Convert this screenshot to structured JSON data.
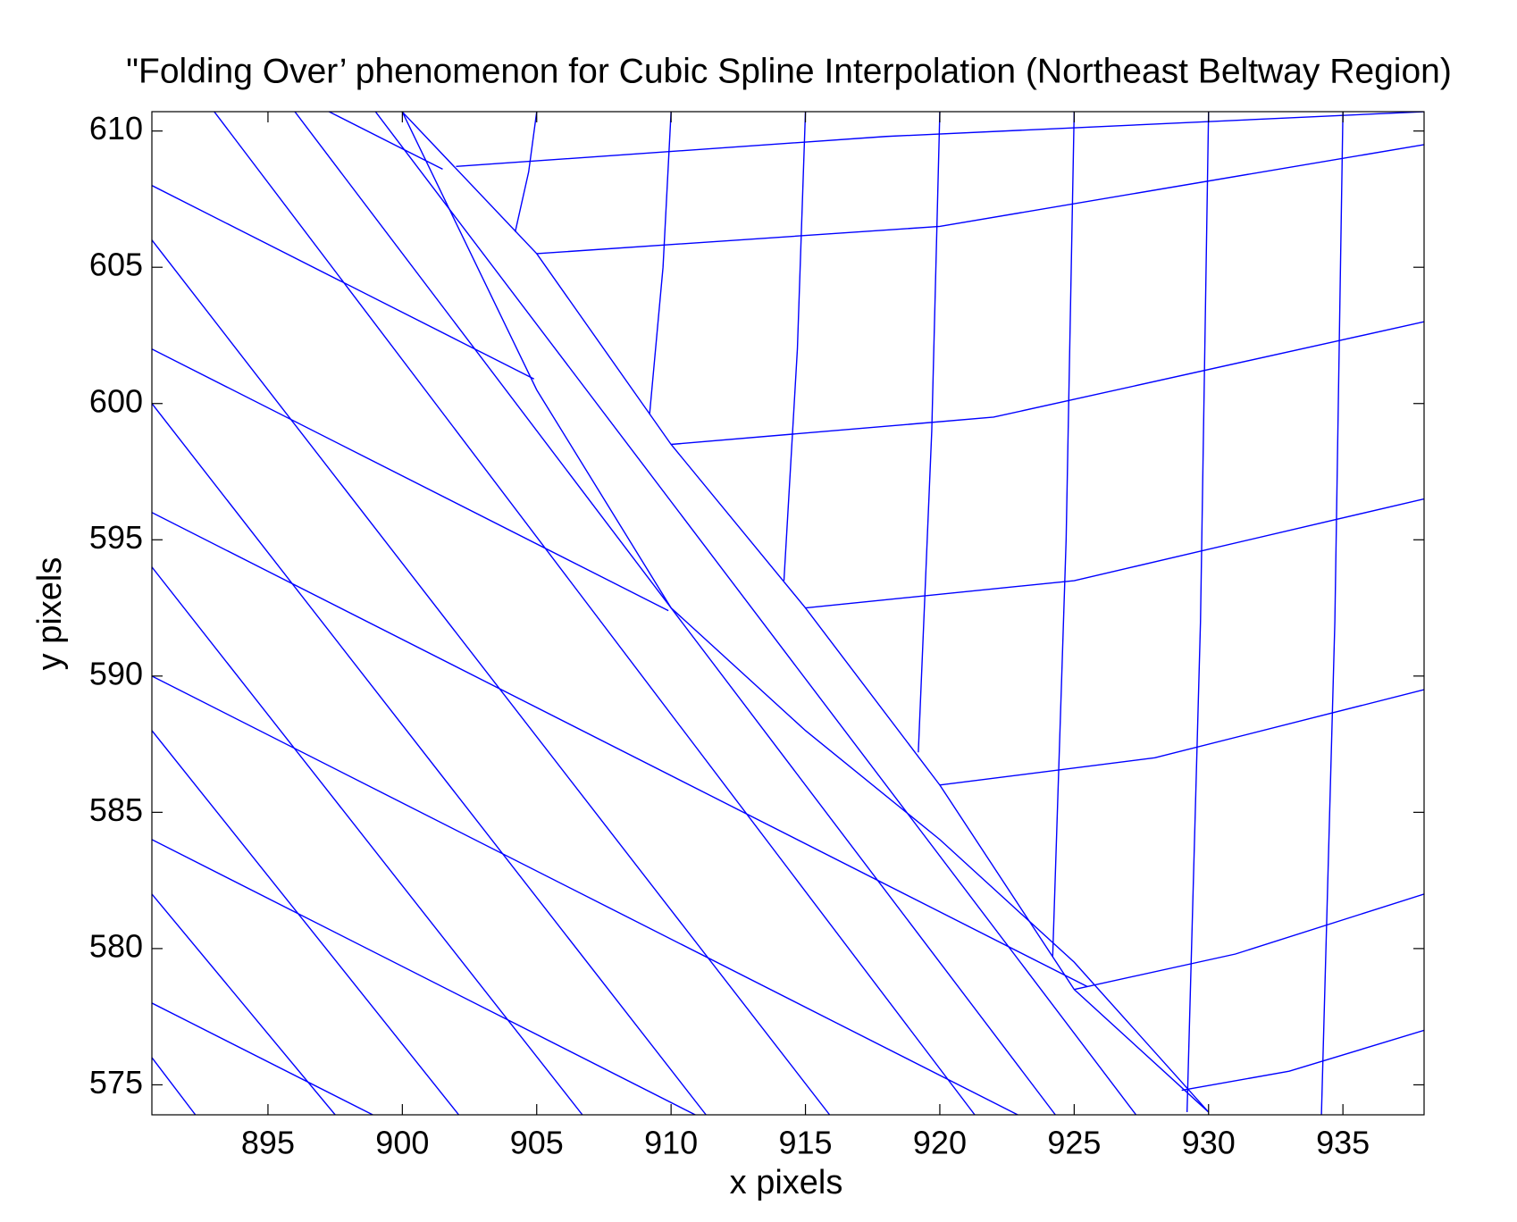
{
  "chart_data": {
    "type": "line",
    "title": "\"Folding Over’ phenomenon for Cubic Spline Interpolation (Northeast Beltway Region)",
    "xlabel": "x pixels",
    "ylabel": "y pixels",
    "color": "#0000ff",
    "xlim": [
      890.68,
      938.02
    ],
    "ylim": [
      573.9,
      610.71
    ],
    "xticks": [
      895,
      900,
      905,
      910,
      915,
      920,
      925,
      930,
      935
    ],
    "yticks": [
      575,
      580,
      585,
      590,
      595,
      600,
      605,
      610
    ],
    "box": true,
    "series": [
      {
        "x": [
          890.68,
          901.5
        ],
        "y": [
          614,
          608.6
        ]
      },
      {
        "x": [
          890.68,
          904.9
        ],
        "y": [
          608,
          600.9
        ]
      },
      {
        "x": [
          890.68,
          909.9
        ],
        "y": [
          602,
          592.4
        ]
      },
      {
        "x": [
          890.68,
          925.5
        ],
        "y": [
          596,
          578.6
        ]
      },
      {
        "x": [
          890.68,
          922.9
        ],
        "y": [
          590,
          573.9
        ]
      },
      {
        "x": [
          890.68,
          910.9
        ],
        "y": [
          584,
          573.9
        ]
      },
      {
        "x": [
          890.68,
          898.9
        ],
        "y": [
          578,
          573.9
        ]
      },
      {
        "x": [
          893,
          921.3
        ],
        "y": [
          610.71,
          573.9
        ]
      },
      {
        "x": [
          896,
          924.3
        ],
        "y": [
          610.71,
          573.9
        ]
      },
      {
        "x": [
          899,
          927.3
        ],
        "y": [
          610.71,
          573.9
        ]
      },
      {
        "x": [
          890.68,
          915.9
        ],
        "y": [
          606,
          573.9
        ]
      },
      {
        "x": [
          890.68,
          911.3
        ],
        "y": [
          600,
          573.9
        ]
      },
      {
        "x": [
          890.68,
          906.7
        ],
        "y": [
          594,
          573.9
        ]
      },
      {
        "x": [
          890.68,
          902.1
        ],
        "y": [
          588,
          573.9
        ]
      },
      {
        "x": [
          890.68,
          897.5
        ],
        "y": [
          582,
          573.9
        ]
      },
      {
        "x": [
          890.68,
          892.3
        ],
        "y": [
          576,
          573.9
        ]
      },
      {
        "x": [
          905,
          904.7,
          904.2
        ],
        "y": [
          610.71,
          608.5,
          606.3
        ]
      },
      {
        "x": [
          910,
          909.7,
          909.2
        ],
        "y": [
          610.71,
          605,
          599.6
        ]
      },
      {
        "x": [
          915,
          914.7,
          914.2
        ],
        "y": [
          610.71,
          602,
          593.5
        ]
      },
      {
        "x": [
          920,
          919.7,
          919.2
        ],
        "y": [
          610.71,
          599,
          587.2
        ]
      },
      {
        "x": [
          925,
          924.7,
          924.2
        ],
        "y": [
          610.71,
          595,
          579.7
        ]
      },
      {
        "x": [
          930,
          929.7,
          929.2
        ],
        "y": [
          610.71,
          592,
          574
        ]
      },
      {
        "x": [
          935,
          934.7,
          934.2
        ],
        "y": [
          610.71,
          592,
          573.9
        ]
      },
      {
        "x": [
          902,
          918,
          938.02
        ],
        "y": [
          608.7,
          609.8,
          610.71
        ]
      },
      {
        "x": [
          905,
          920,
          938.02
        ],
        "y": [
          605.5,
          606.5,
          609.5
        ]
      },
      {
        "x": [
          910,
          922,
          938.02
        ],
        "y": [
          598.5,
          599.5,
          603
        ]
      },
      {
        "x": [
          915,
          925,
          938.02
        ],
        "y": [
          592.5,
          593.5,
          596.5
        ]
      },
      {
        "x": [
          920,
          928,
          938.02
        ],
        "y": [
          586,
          587,
          589.5
        ]
      },
      {
        "x": [
          925,
          931,
          938.02
        ],
        "y": [
          578.5,
          579.8,
          582
        ]
      },
      {
        "x": [
          929,
          933,
          938.02
        ],
        "y": [
          574.8,
          575.5,
          577
        ]
      },
      {
        "x": [
          900,
          905,
          910,
          915,
          920,
          925,
          930
        ],
        "y": [
          610.7,
          600.5,
          592.5,
          588,
          584,
          579.5,
          574
        ]
      },
      {
        "x": [
          900,
          905,
          910,
          915,
          920,
          925,
          930
        ],
        "y": [
          610.7,
          605.5,
          598.5,
          592.5,
          586,
          578.5,
          574
        ]
      }
    ]
  }
}
